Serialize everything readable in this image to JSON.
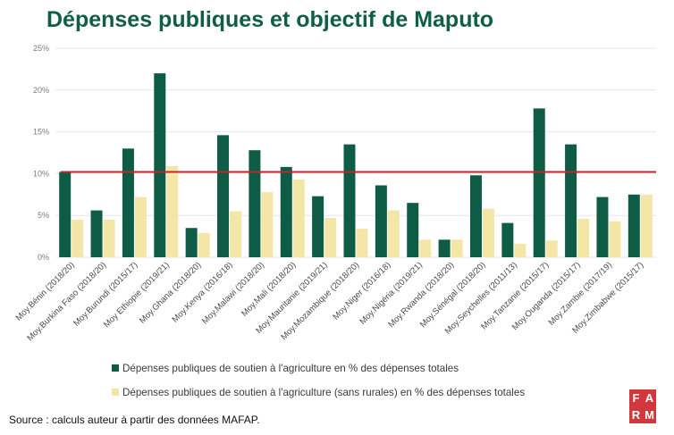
{
  "title": "Dépenses publiques et objectif de Maputo",
  "source": "Source : calculs auteur à partir des données MAFAP.",
  "logo": {
    "letters": [
      "F",
      "A",
      "R",
      "M"
    ]
  },
  "colors": {
    "series1": "#0e5c45",
    "series2": "#f3e6a7",
    "target": "#c0262a",
    "grid": "#e6e6e6",
    "title": "#0e5f44"
  },
  "chart_data": {
    "type": "bar",
    "title": "Dépenses publiques et objectif de Maputo",
    "xlabel": "",
    "ylabel": "",
    "ylim": [
      0,
      25
    ],
    "yticks": [
      "0%",
      "5%",
      "10%",
      "15%",
      "20%",
      "25%"
    ],
    "ytick_values": [
      0,
      5,
      10,
      15,
      20,
      25
    ],
    "target_line": 10.2,
    "legend_position": "bottom",
    "categories": [
      "Moy.Bénin (2018/20)",
      "Moy.Burkina Faso (2018/20)",
      "Moy.Burundi (2015/17)",
      "Moy Ethiopie (2019/21)",
      "Moy.Ghana (2018/20)",
      "Moy.Kenya (2016/18)",
      "Moy.Malawi (2018/20)",
      "Moy.Mali (2018/20)",
      "Moy.Mauritanie (2019/21)",
      "Moy.Mozambique (2018/20)",
      "Moy.Niger (2016/18)",
      "Moy.Nigéria (2019/21)",
      "Moy.Rwanda (2018/20)",
      "Moy.Sénégal (2018/20)",
      "Moy.Seychelles (2011/13)",
      "Moy.Tanzanie (2015/17)",
      "Moy.Ouganda (2015/17)",
      "Moy.Zambie (2017/19)",
      "Moy.Zimbabwe (2015/17)"
    ],
    "series": [
      {
        "name": "Dépenses publiques de soutien à l'agriculture en % des dépenses totales",
        "values": [
          10.2,
          5.6,
          13.0,
          22.0,
          3.5,
          14.6,
          12.8,
          10.8,
          7.3,
          13.5,
          8.6,
          6.5,
          2.1,
          9.8,
          4.1,
          17.8,
          13.5,
          7.2,
          7.5
        ]
      },
      {
        "name": "Dépenses publiques de soutien à l'agriculture (sans rurales) en % des dépenses totales",
        "values": [
          4.5,
          4.5,
          7.2,
          10.9,
          2.9,
          5.5,
          7.8,
          9.3,
          4.7,
          3.4,
          5.6,
          2.1,
          2.1,
          5.8,
          1.6,
          2.0,
          4.6,
          4.3,
          7.5
        ]
      }
    ]
  }
}
